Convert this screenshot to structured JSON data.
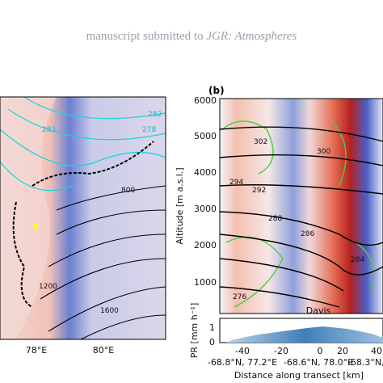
{
  "header": {
    "text": "manuscript submitted to",
    "journal": "JGR: Atmospheres"
  },
  "panel_a": {
    "x_ticks": [
      "78°E",
      "80°E"
    ],
    "contour_labels": [
      "282",
      "283",
      "278",
      "800",
      "1200",
      "1600"
    ]
  },
  "panel_b": {
    "label": "(b)",
    "y_axis_label": "Altitude [m a.s.l.]",
    "y_ticks": [
      "1000",
      "2000",
      "3000",
      "4000",
      "5000",
      "6000"
    ],
    "contour_labels": [
      "302",
      "300",
      "294",
      "292",
      "288",
      "286",
      "284",
      "276"
    ],
    "pr_label": "PR [mm h⁻¹]",
    "pr_ticks": [
      "0",
      "1"
    ],
    "x_ticks": [
      "-40",
      "-20",
      "0",
      "20",
      "40"
    ],
    "station": "Davis",
    "locations": [
      "-68.8°N, 77.2°E",
      "-68.6°N, 78.0°E",
      "-68.3°N, 7"
    ],
    "x_axis_label": "Distance along transect [km]"
  }
}
